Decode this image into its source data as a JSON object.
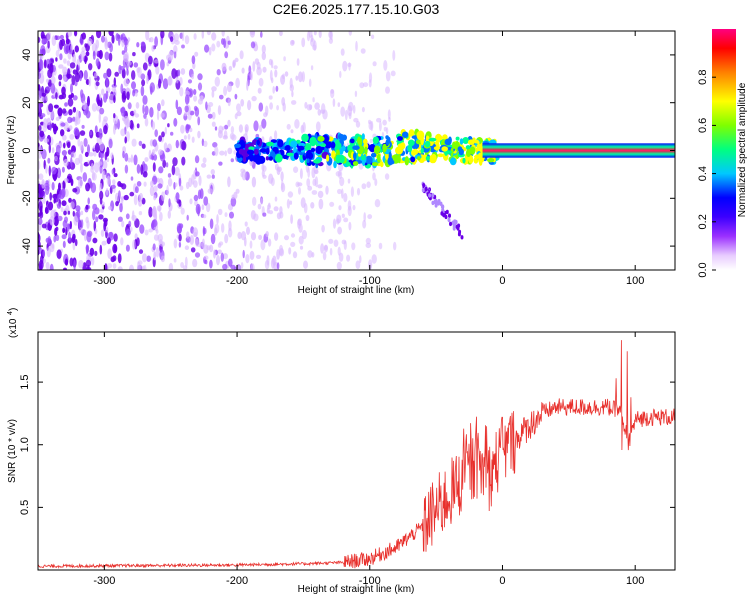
{
  "title": "C2E6.2025.177.15.10.G03",
  "chart_data": [
    {
      "type": "heatmap",
      "xlabel": "Height of straight line (km)",
      "ylabel": "Frequency (Hz)",
      "xlim": [
        -350,
        130
      ],
      "ylim": [
        -50,
        50
      ],
      "x_ticks": [
        -300,
        -200,
        -100,
        0,
        100
      ],
      "x_tick_labels": [
        "-300",
        "-200",
        "-100",
        "0",
        "100"
      ],
      "y_ticks": [
        -40,
        -20,
        0,
        20,
        40
      ],
      "y_tick_labels": [
        "-40",
        "-20",
        "0",
        "20",
        "40"
      ],
      "colorbar": {
        "label": "Normalized spectral amplitude",
        "range": [
          0,
          1
        ],
        "ticks": [
          0.0,
          0.2,
          0.4,
          0.6,
          0.8
        ],
        "tick_labels": [
          "0.0",
          "0.2",
          "0.4",
          "0.6",
          "0.8"
        ],
        "colors": [
          "#ffffff",
          "#e8ccff",
          "#9b30ff",
          "#5a00e0",
          "#0000ff",
          "#00c8ff",
          "#00ff80",
          "#7fff00",
          "#ffff00",
          "#ff8000",
          "#ff0000",
          "#ff0080"
        ]
      },
      "noise_region_x": [
        -350,
        -120
      ],
      "signal_band": {
        "x_start": -200,
        "x_end": 130,
        "center_freq": 0
      },
      "strong_signal_x": [
        -15,
        130
      ],
      "dispersive_tail": {
        "x": [
          -60,
          -30
        ],
        "freq": [
          -15,
          -35
        ]
      }
    },
    {
      "type": "line",
      "xlabel": "Height of straight line (km)",
      "ylabel": "SNR (10 * v/v)",
      "multiplier_label": "(x10^4)",
      "xlim": [
        -350,
        130
      ],
      "ylim": [
        0,
        1.9
      ],
      "x_ticks": [
        -300,
        -200,
        -100,
        0,
        100
      ],
      "x_tick_labels": [
        "-300",
        "-200",
        "-100",
        "0",
        "100"
      ],
      "y_ticks": [
        0.5,
        1.0,
        1.5
      ],
      "y_tick_labels": [
        "0.5",
        "1.0",
        "1.5"
      ],
      "series": [
        {
          "color": "#e8302c",
          "x": [
            -350,
            -200,
            -150,
            -120,
            -100,
            -80,
            -60,
            -40,
            -20,
            -10,
            0,
            10,
            20,
            30,
            40,
            60,
            80,
            90,
            95,
            100,
            110,
            130
          ],
          "y": [
            0.03,
            0.04,
            0.05,
            0.06,
            0.09,
            0.18,
            0.35,
            0.6,
            0.85,
            0.75,
            0.95,
            1.05,
            1.15,
            1.25,
            1.3,
            1.3,
            1.3,
            1.25,
            1.0,
            1.2,
            1.22,
            1.22
          ]
        }
      ]
    }
  ]
}
